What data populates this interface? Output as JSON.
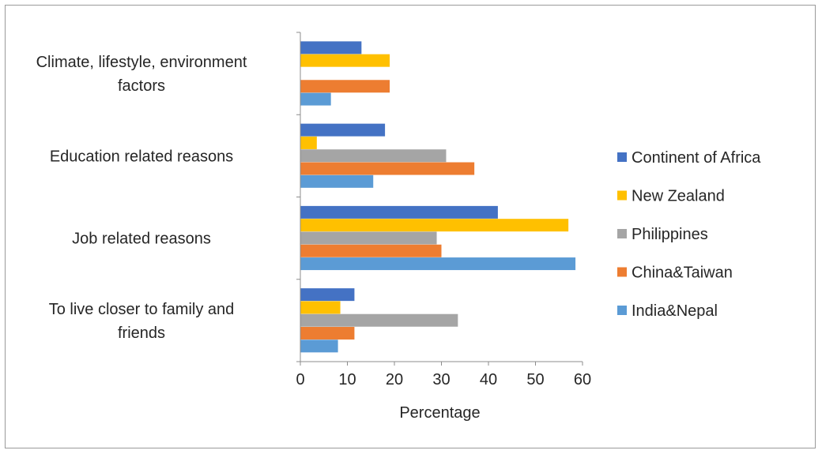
{
  "chart_data": {
    "type": "bar",
    "orientation": "horizontal",
    "categories": [
      [
        "Climate, lifestyle, environment",
        "factors"
      ],
      [
        "Education related reasons"
      ],
      [
        "Job related reasons"
      ],
      [
        "To live  closer to family and",
        "friends"
      ]
    ],
    "series": [
      {
        "name": "Continent of Africa",
        "color": "#4472C4",
        "values": [
          13,
          18,
          42,
          11.5
        ]
      },
      {
        "name": "New Zealand",
        "color": "#FFC000",
        "values": [
          19,
          3.5,
          57,
          8.5
        ]
      },
      {
        "name": "Philippines",
        "color": "#A5A5A5",
        "values": [
          null,
          31,
          29,
          33.5
        ]
      },
      {
        "name": "China&Taiwan",
        "color": "#ED7D31",
        "values": [
          19,
          37,
          30,
          11.5
        ]
      },
      {
        "name": "India&Nepal",
        "color": "#5B9BD5",
        "values": [
          6.5,
          15.5,
          58.5,
          8
        ]
      }
    ],
    "legend_order": [
      "Continent of Africa",
      "New Zealand",
      "Philippines",
      "China&Taiwan",
      "India&Nepal"
    ],
    "xlabel": "Percentage",
    "ylabel": "",
    "title": "",
    "xlim": [
      0,
      60
    ],
    "xticks": [
      0,
      10,
      20,
      30,
      40,
      50,
      60
    ],
    "grid": false,
    "legend_position": "right"
  }
}
